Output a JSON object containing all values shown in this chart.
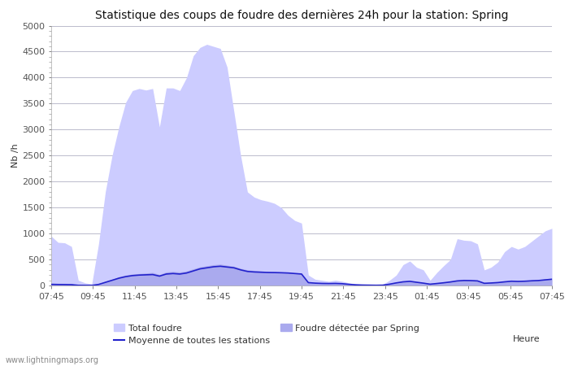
{
  "title": "Statistique des coups de foudre des dernières 24h pour la station: Spring",
  "xlabel": "Heure",
  "ylabel": "Nb /h",
  "ylim": [
    0,
    5000
  ],
  "yticks": [
    0,
    500,
    1000,
    1500,
    2000,
    2500,
    3000,
    3500,
    4000,
    4500,
    5000
  ],
  "x_labels": [
    "07:45",
    "09:45",
    "11:45",
    "13:45",
    "15:45",
    "17:45",
    "19:45",
    "21:45",
    "23:45",
    "01:45",
    "03:45",
    "05:45",
    "07:45"
  ],
  "total_foudre": [
    950,
    830,
    820,
    750,
    100,
    50,
    30,
    800,
    1800,
    2500,
    3050,
    3520,
    3750,
    3790,
    3760,
    3790,
    3050,
    3800,
    3800,
    3750,
    4000,
    4420,
    4580,
    4640,
    4600,
    4560,
    4200,
    3350,
    2500,
    1800,
    1700,
    1650,
    1620,
    1580,
    1500,
    1350,
    1250,
    1200,
    200,
    120,
    100,
    80,
    100,
    80,
    50,
    30,
    20,
    15,
    10,
    20,
    100,
    200,
    400,
    470,
    350,
    300,
    100,
    250,
    380,
    500,
    900,
    870,
    860,
    800,
    300,
    350,
    450,
    650,
    750,
    700,
    750,
    850,
    950,
    1050,
    1100
  ],
  "foudre_spring": [
    50,
    42,
    40,
    35,
    5,
    3,
    2,
    30,
    80,
    120,
    170,
    200,
    220,
    230,
    240,
    250,
    210,
    260,
    270,
    260,
    280,
    320,
    360,
    380,
    400,
    410,
    390,
    370,
    330,
    300,
    290,
    280,
    270,
    265,
    260,
    250,
    240,
    230,
    60,
    50,
    45,
    40,
    45,
    40,
    25,
    15,
    10,
    8,
    5,
    8,
    30,
    60,
    80,
    90,
    70,
    50,
    30,
    45,
    60,
    80,
    100,
    110,
    108,
    100,
    50,
    55,
    65,
    80,
    95,
    90,
    95,
    105,
    110,
    125,
    140
  ],
  "moyenne_stations": [
    20,
    18,
    17,
    15,
    3,
    2,
    1,
    20,
    60,
    100,
    140,
    170,
    190,
    200,
    205,
    210,
    180,
    220,
    230,
    220,
    240,
    280,
    320,
    340,
    360,
    370,
    355,
    340,
    300,
    270,
    260,
    255,
    250,
    248,
    245,
    240,
    230,
    220,
    55,
    45,
    40,
    38,
    40,
    35,
    22,
    12,
    8,
    6,
    4,
    6,
    25,
    50,
    70,
    80,
    62,
    45,
    25,
    38,
    52,
    68,
    88,
    96,
    94,
    88,
    42,
    48,
    56,
    70,
    82,
    78,
    82,
    90,
    95,
    108,
    120
  ],
  "color_total": "#ccccff",
  "color_spring": "#aaaaee",
  "color_moyenne": "#2222cc",
  "bg_color": "#ffffff",
  "grid_color": "#bbbbcc",
  "watermark": "www.lightningmaps.org",
  "title_fontsize": 10,
  "label_fontsize": 8,
  "tick_fontsize": 8
}
